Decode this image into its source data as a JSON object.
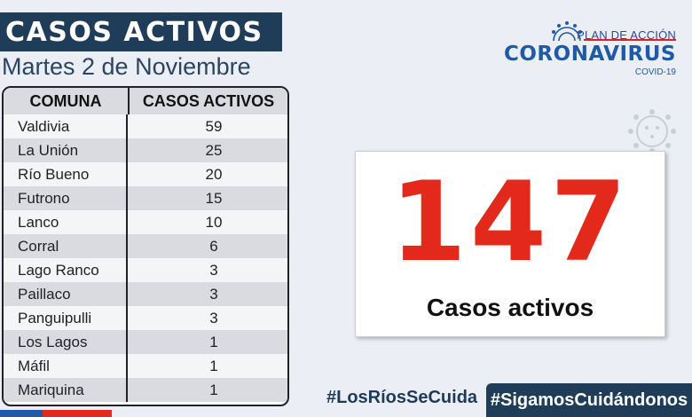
{
  "header": {
    "title": "CASOS ACTIVOS",
    "date": "Martes 2 de Noviembre"
  },
  "table": {
    "headers": [
      "COMUNA",
      "CASOS ACTIVOS"
    ],
    "rows": [
      {
        "comuna": "Valdivia",
        "casos": "59"
      },
      {
        "comuna": "La Unión",
        "casos": "25"
      },
      {
        "comuna": "Río Bueno",
        "casos": "20"
      },
      {
        "comuna": "Futrono",
        "casos": "15"
      },
      {
        "comuna": "Lanco",
        "casos": "10"
      },
      {
        "comuna": "Corral",
        "casos": "6"
      },
      {
        "comuna": "Lago Ranco",
        "casos": "3"
      },
      {
        "comuna": "Paillaco",
        "casos": "3"
      },
      {
        "comuna": "Panguipulli",
        "casos": "3"
      },
      {
        "comuna": "Los Lagos",
        "casos": "1"
      },
      {
        "comuna": "Máfil",
        "casos": "1"
      },
      {
        "comuna": "Mariquina",
        "casos": "1"
      }
    ]
  },
  "logo": {
    "plan": "PLAN DE ACCIÓN",
    "name": "CORONAVIRUS",
    "sub": "COVID-19",
    "icon": "virus-icon"
  },
  "summary": {
    "total": "147",
    "label": "Casos activos"
  },
  "hashtags": {
    "left": "#LosRíosSeCuida",
    "right": "#SigamosCuidándonos"
  },
  "colors": {
    "navy": "#1f3c58",
    "accent_red": "#e3291c",
    "brand_blue": "#1e5aa8",
    "background": "#ebeef4"
  }
}
